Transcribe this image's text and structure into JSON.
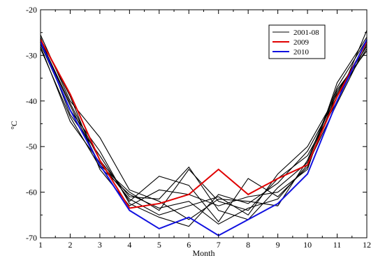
{
  "chart_data": {
    "type": "line",
    "title": "",
    "xlabel": "Month",
    "ylabel": "°C",
    "xlim": [
      1,
      12
    ],
    "ylim": [
      -70,
      -20
    ],
    "xticks": [
      1,
      2,
      3,
      4,
      5,
      6,
      7,
      8,
      9,
      10,
      11,
      12
    ],
    "yticks": [
      -70,
      -60,
      -50,
      -40,
      -30,
      -20
    ],
    "grid": false,
    "legend_position": "top-right",
    "legend": [
      {
        "label": "2001-08",
        "color": "#000000"
      },
      {
        "label": "2009",
        "color": "#e00000"
      },
      {
        "label": "2010",
        "color": "#1010e0"
      }
    ],
    "x": [
      1,
      2,
      3,
      4,
      5,
      6,
      7,
      8,
      9,
      10,
      11,
      12
    ],
    "series": [
      {
        "group": "2001-08",
        "color": "#000000",
        "values": [
          -25.5,
          -40.0,
          -48.0,
          -59.5,
          -62.0,
          -66.0,
          -61.5,
          -62.0,
          -63.0,
          -53.0,
          -37.0,
          -26.5
        ]
      },
      {
        "group": "2001-08",
        "color": "#000000",
        "values": [
          -26.0,
          -43.0,
          -52.0,
          -62.0,
          -56.5,
          -58.5,
          -66.5,
          -57.0,
          -61.0,
          -54.5,
          -38.0,
          -28.0
        ]
      },
      {
        "group": "2001-08",
        "color": "#000000",
        "values": [
          -27.0,
          -41.0,
          -54.0,
          -60.0,
          -64.0,
          -55.0,
          -62.0,
          -64.0,
          -57.0,
          -52.0,
          -40.0,
          -24.5
        ]
      },
      {
        "group": "2001-08",
        "color": "#000000",
        "values": [
          -28.0,
          -44.5,
          -53.5,
          -61.5,
          -65.0,
          -63.0,
          -61.0,
          -65.0,
          -56.0,
          -50.0,
          -38.5,
          -27.0
        ]
      },
      {
        "group": "2001-08",
        "color": "#000000",
        "values": [
          -26.5,
          -39.0,
          -55.0,
          -63.0,
          -59.5,
          -60.5,
          -63.0,
          -61.0,
          -60.0,
          -55.0,
          -36.0,
          -26.0
        ]
      },
      {
        "group": "2001-08",
        "color": "#000000",
        "values": [
          -27.5,
          -42.0,
          -51.0,
          -62.5,
          -65.5,
          -67.5,
          -60.5,
          -62.5,
          -58.0,
          -51.0,
          -39.0,
          -28.5
        ]
      },
      {
        "group": "2001-08",
        "color": "#000000",
        "values": [
          -26.8,
          -40.5,
          -53.0,
          -61.0,
          -61.5,
          -54.5,
          -64.0,
          -66.0,
          -59.0,
          -53.5,
          -37.5,
          -29.0
        ]
      },
      {
        "group": "2001-08",
        "color": "#000000",
        "values": [
          -28.5,
          -43.5,
          -54.5,
          -60.5,
          -63.5,
          -62.0,
          -67.0,
          -63.5,
          -61.5,
          -54.0,
          -40.5,
          -27.5
        ]
      },
      {
        "name": "2009",
        "color": "#e00000",
        "values": [
          -26.5,
          -38.5,
          -53.0,
          -63.5,
          -62.5,
          -60.5,
          -55.0,
          -60.5,
          -57.0,
          -54.0,
          -39.0,
          -27.0
        ]
      },
      {
        "name": "2010",
        "color": "#1010e0",
        "values": [
          -27.0,
          -42.0,
          -54.0,
          -64.0,
          -68.0,
          -65.5,
          -69.5,
          -66.0,
          -62.5,
          -56.0,
          -40.0,
          -26.5
        ]
      }
    ]
  }
}
